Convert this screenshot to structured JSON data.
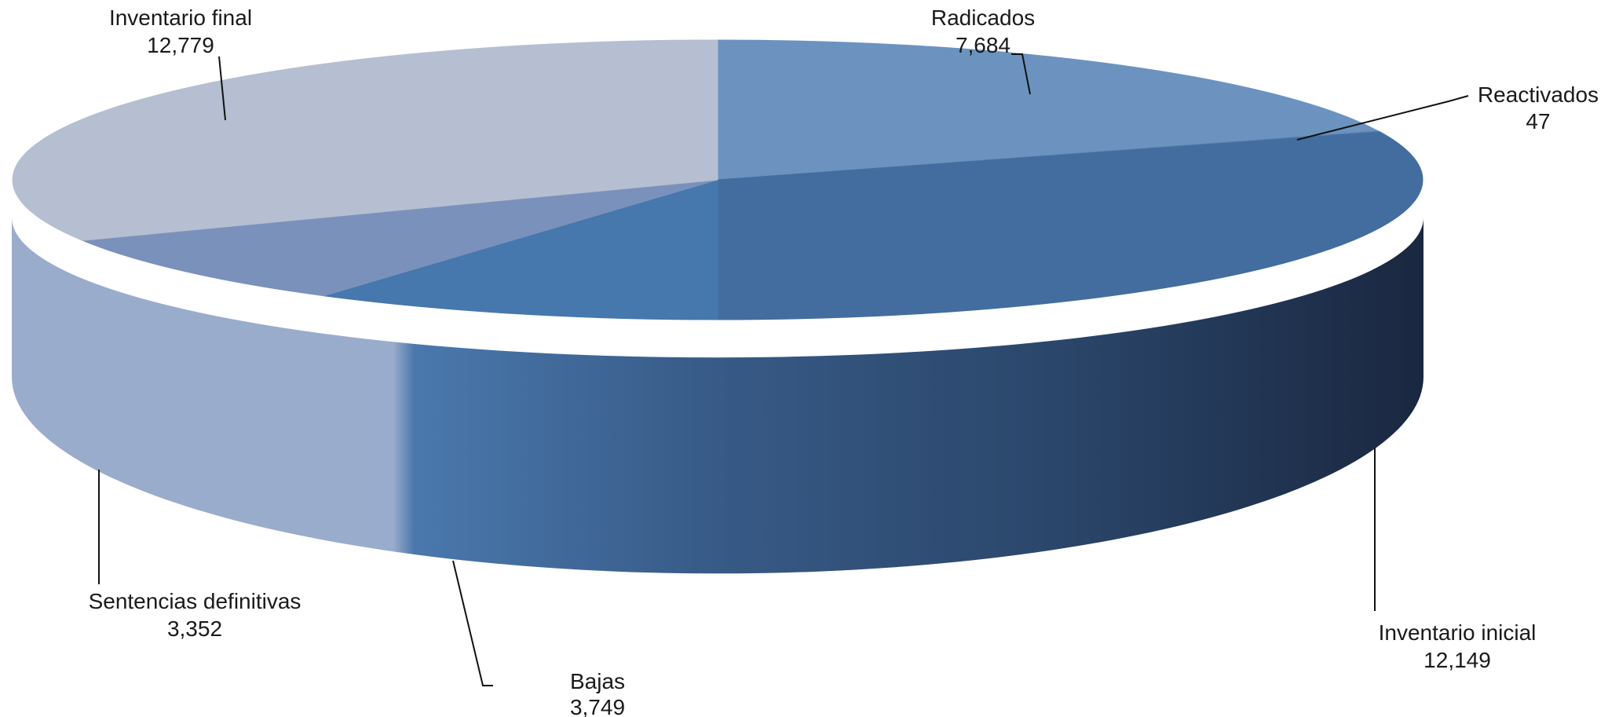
{
  "chart_data": {
    "type": "pie",
    "title": "",
    "slices": [
      {
        "label": "Radicados",
        "value_text": "7,684",
        "value": 7684,
        "color": "#6c93bf"
      },
      {
        "label": "Reactivados",
        "value_text": "47",
        "value": 47,
        "color": "#5a7fae"
      },
      {
        "label": "Inventario inicial",
        "value_text": "12,149",
        "value": 12149,
        "color": "#436d9f"
      },
      {
        "label": "Bajas",
        "value_text": "3,749",
        "value": 3749,
        "color": "#4677ad"
      },
      {
        "label": "Sentencias definitivas",
        "value_text": "3,352",
        "value": 3352,
        "color": "#7a91bb"
      },
      {
        "label": "Inventario final",
        "value_text": "12,779",
        "value": 12779,
        "color": "#b5bfd1"
      }
    ],
    "three_d": true,
    "legend": "none"
  }
}
